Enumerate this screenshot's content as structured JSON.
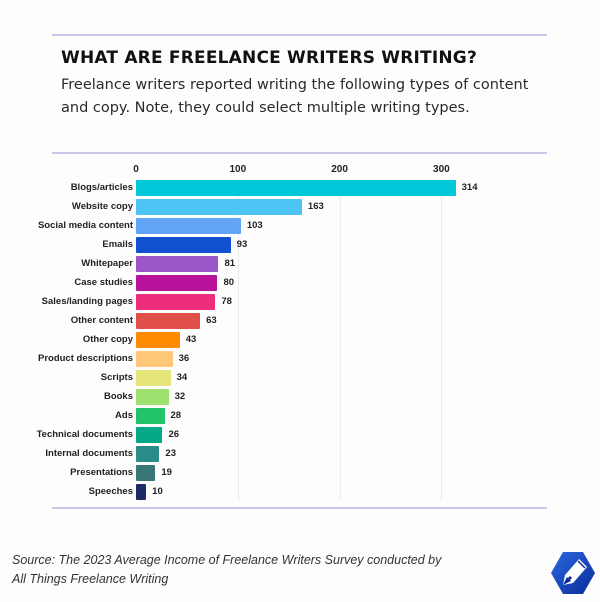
{
  "header": {
    "title": "WHAT ARE FREELANCE WRITERS WRITING?",
    "subtitle": "Freelance writers reported writing the following types of content and copy. Note, they could select multiple writing types."
  },
  "axis": {
    "ticks": [
      "0",
      "100",
      "200",
      "300"
    ]
  },
  "rows": [
    {
      "label": "Blogs/articles",
      "value": "314"
    },
    {
      "label": "Website copy",
      "value": "163"
    },
    {
      "label": "Social media content",
      "value": "103"
    },
    {
      "label": "Emails",
      "value": "93"
    },
    {
      "label": "Whitepaper",
      "value": "81"
    },
    {
      "label": "Case studies",
      "value": "80"
    },
    {
      "label": "Sales/landing pages",
      "value": "78"
    },
    {
      "label": "Other content",
      "value": "63"
    },
    {
      "label": "Other copy",
      "value": "43"
    },
    {
      "label": "Product descriptions",
      "value": "36"
    },
    {
      "label": "Scripts",
      "value": "34"
    },
    {
      "label": "Books",
      "value": "32"
    },
    {
      "label": "Ads",
      "value": "28"
    },
    {
      "label": "Technical documents",
      "value": "26"
    },
    {
      "label": "Internal documents",
      "value": "23"
    },
    {
      "label": "Presentations",
      "value": "19"
    },
    {
      "label": "Speeches",
      "value": "10"
    }
  ],
  "colors": [
    "#00c8d8",
    "#4ec4f5",
    "#62a4f5",
    "#1150d0",
    "#9b57c8",
    "#b8139b",
    "#ee2e7c",
    "#e05048",
    "#ff8a00",
    "#ffc878",
    "#e5e57a",
    "#9de070",
    "#22c46a",
    "#07a887",
    "#2a8c88",
    "#397677",
    "#1e2c66"
  ],
  "footer": {
    "source": "Source: The 2023 Average Income of Freelance Writers Survey conducted by",
    "source_line2": "All Things Freelance Writing",
    "logo_icon": "pen-nib-hexagon-icon"
  },
  "chart_data": {
    "type": "bar",
    "orientation": "horizontal",
    "title": "WHAT ARE FREELANCE WRITERS WRITING?",
    "subtitle": "Freelance writers reported writing the following types of content and copy. Note, they could select multiple writing types.",
    "categories": [
      "Blogs/articles",
      "Website copy",
      "Social media content",
      "Emails",
      "Whitepaper",
      "Case studies",
      "Sales/landing pages",
      "Other content",
      "Other copy",
      "Product descriptions",
      "Scripts",
      "Books",
      "Ads",
      "Technical documents",
      "Internal documents",
      "Presentations",
      "Speeches"
    ],
    "values": [
      314,
      163,
      103,
      93,
      81,
      80,
      78,
      63,
      43,
      36,
      34,
      32,
      28,
      26,
      23,
      19,
      10
    ],
    "xlabel": "",
    "ylabel": "",
    "xlim": [
      0,
      320
    ],
    "xticks": [
      0,
      100,
      200,
      300
    ],
    "grid": true,
    "data_labels": true,
    "legend": "none",
    "annotations": [
      "Source: The 2023 Average Income of Freelance Writers Survey conducted by All Things Freelance Writing"
    ]
  }
}
